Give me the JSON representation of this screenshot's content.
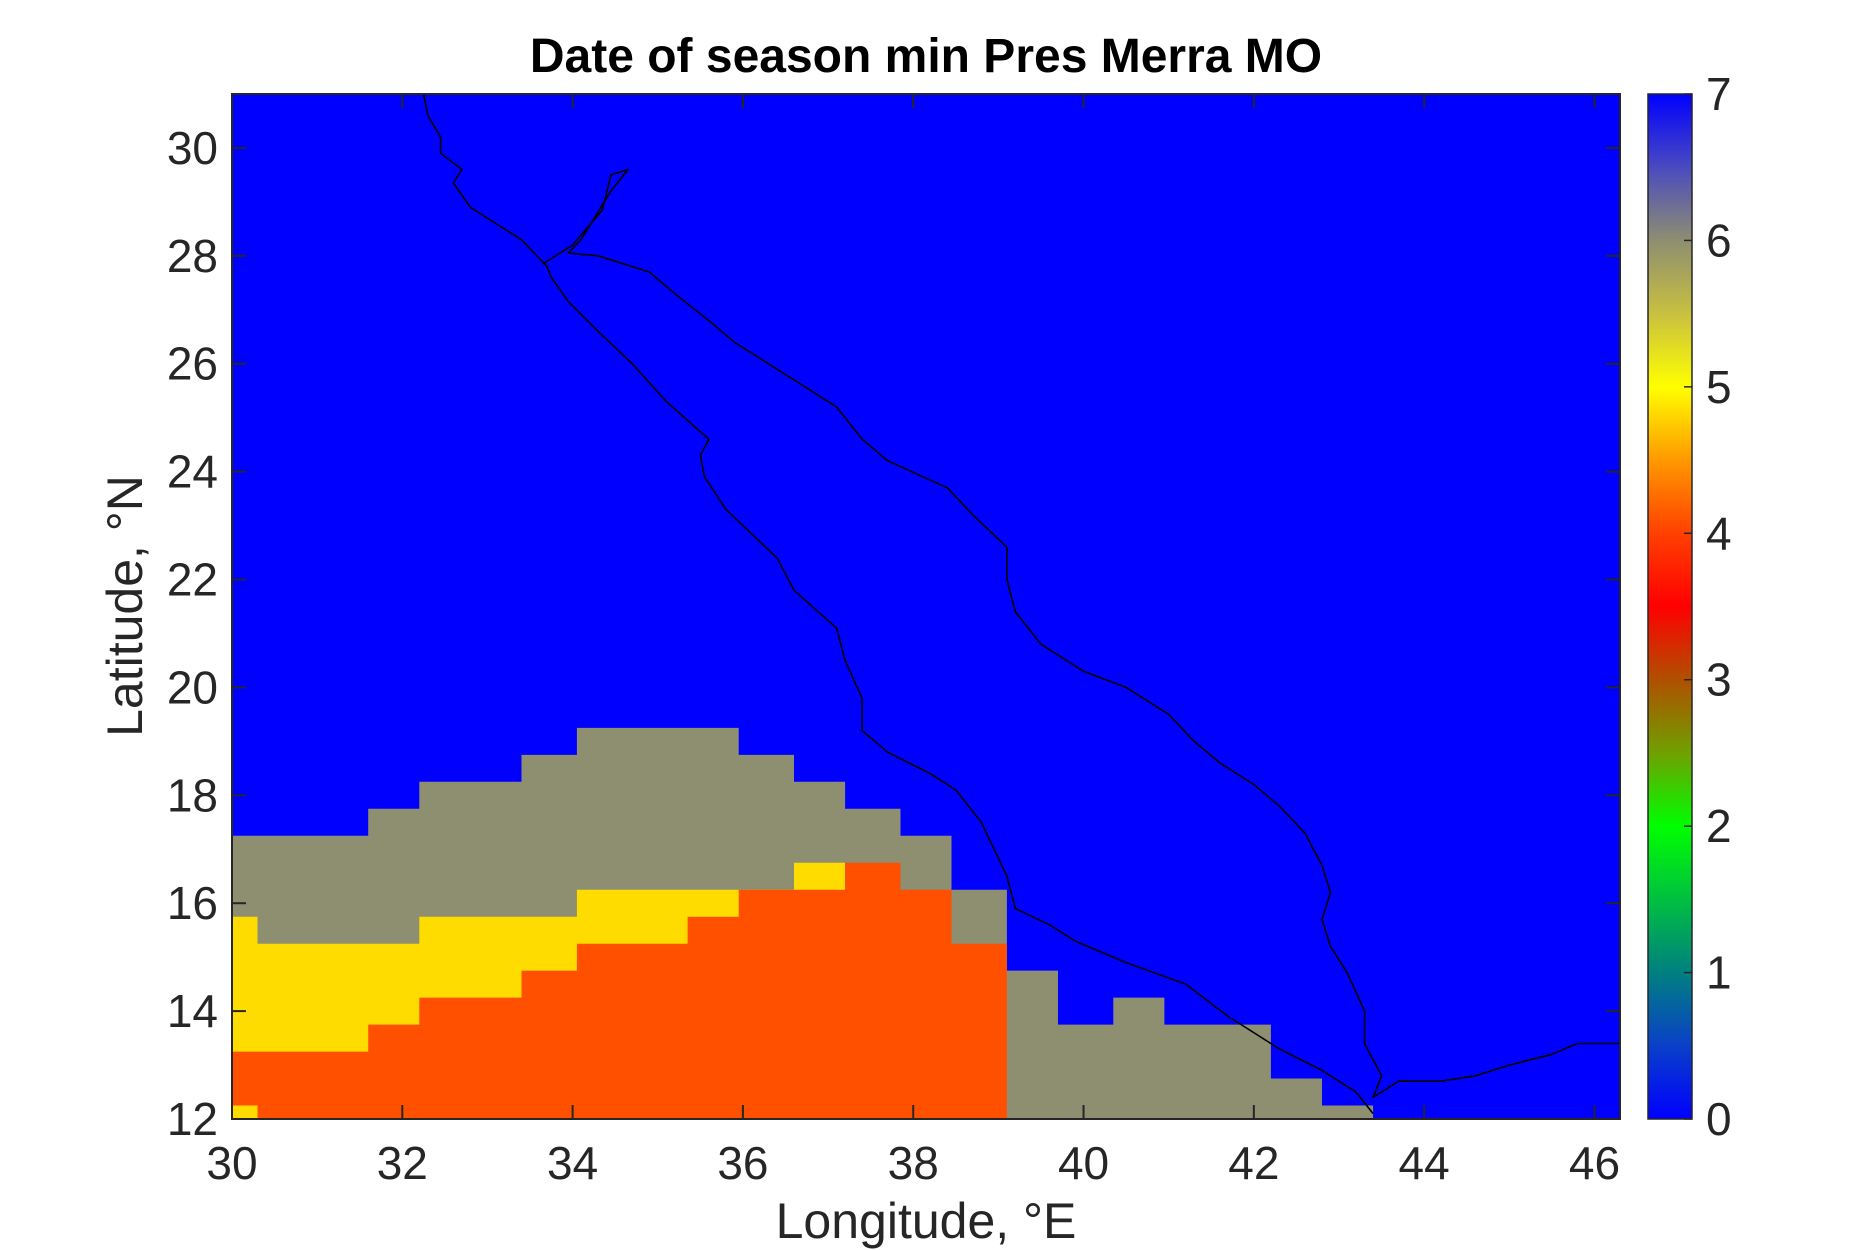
{
  "chart_data": {
    "type": "heatmap",
    "title": "Date of season min Pres Merra MO",
    "xlabel": "Longitude, °E",
    "ylabel": "Latitude, °N",
    "xlim": [
      30,
      46.3
    ],
    "ylim": [
      12,
      31
    ],
    "xticks": [
      30,
      32,
      34,
      36,
      38,
      40,
      42,
      44,
      46
    ],
    "yticks": [
      12,
      14,
      16,
      18,
      20,
      22,
      24,
      26,
      28,
      30
    ],
    "colorbar": {
      "range": [
        0,
        7
      ],
      "ticks": [
        0,
        1,
        2,
        3,
        4,
        5,
        6,
        7
      ],
      "colormap": "blue-teal-green-brown-red-orange-yellow-gray-blue",
      "stops": [
        {
          "value": 0,
          "color": "#0000ff"
        },
        {
          "value": 0.5,
          "color": "#0a40c8"
        },
        {
          "value": 1,
          "color": "#008080"
        },
        {
          "value": 1.5,
          "color": "#00c040"
        },
        {
          "value": 2,
          "color": "#00ff00"
        },
        {
          "value": 2.5,
          "color": "#70a000"
        },
        {
          "value": 3,
          "color": "#b05000"
        },
        {
          "value": 3.5,
          "color": "#ff0000"
        },
        {
          "value": 4,
          "color": "#ff4000"
        },
        {
          "value": 4.5,
          "color": "#ff9900"
        },
        {
          "value": 5,
          "color": "#ffff00"
        },
        {
          "value": 5.5,
          "color": "#c8c040"
        },
        {
          "value": 6,
          "color": "#8e8e70"
        },
        {
          "value": 6.5,
          "color": "#4a4ac0"
        },
        {
          "value": 7,
          "color": "#0000ff"
        }
      ]
    },
    "background_value": 7,
    "cell_colors": {
      "7": "#0000ff",
      "6": "#8e8e70",
      "5": "#ffdc00",
      "4": "#ff5000"
    },
    "regions": [
      {
        "value": 6,
        "polygon": [
          [
            30,
            17.25
          ],
          [
            31.6,
            17.25
          ],
          [
            31.6,
            17.75
          ],
          [
            32.2,
            17.75
          ],
          [
            32.2,
            18.25
          ],
          [
            33.4,
            18.25
          ],
          [
            33.4,
            18.75
          ],
          [
            34.05,
            18.75
          ],
          [
            34.05,
            19.25
          ],
          [
            35.95,
            19.25
          ],
          [
            35.95,
            18.75
          ],
          [
            36.6,
            18.75
          ],
          [
            36.6,
            18.25
          ],
          [
            37.2,
            18.25
          ],
          [
            37.2,
            17.75
          ],
          [
            37.85,
            17.75
          ],
          [
            37.85,
            17.25
          ],
          [
            38.45,
            17.25
          ],
          [
            38.45,
            16.25
          ],
          [
            39.1,
            16.25
          ],
          [
            39.1,
            14.75
          ],
          [
            39.7,
            14.75
          ],
          [
            39.7,
            13.75
          ],
          [
            40.35,
            13.75
          ],
          [
            40.35,
            14.25
          ],
          [
            40.95,
            14.25
          ],
          [
            40.95,
            13.75
          ],
          [
            42.2,
            13.75
          ],
          [
            42.2,
            12.75
          ],
          [
            42.8,
            12.75
          ],
          [
            42.8,
            12.25
          ],
          [
            43.4,
            12.25
          ],
          [
            43.4,
            12
          ],
          [
            30,
            12
          ]
        ]
      },
      {
        "value": 5,
        "polygon": [
          [
            30,
            15.75
          ],
          [
            30.3,
            15.75
          ],
          [
            30.3,
            15.25
          ],
          [
            32.2,
            15.25
          ],
          [
            32.2,
            15.75
          ],
          [
            34.05,
            15.75
          ],
          [
            34.05,
            16.25
          ],
          [
            35.95,
            16.25
          ],
          [
            35.95,
            16.25
          ],
          [
            36.6,
            16.25
          ],
          [
            36.6,
            16.75
          ],
          [
            37.2,
            16.75
          ],
          [
            37.2,
            12
          ],
          [
            30,
            12
          ]
        ]
      },
      {
        "value": 4,
        "polygon": [
          [
            30,
            13.25
          ],
          [
            31.6,
            13.25
          ],
          [
            31.6,
            13.75
          ],
          [
            32.2,
            13.75
          ],
          [
            32.2,
            14.25
          ],
          [
            33.4,
            14.25
          ],
          [
            33.4,
            14.75
          ],
          [
            34.05,
            14.75
          ],
          [
            34.05,
            15.25
          ],
          [
            35.35,
            15.25
          ],
          [
            35.35,
            15.75
          ],
          [
            35.95,
            15.75
          ],
          [
            35.95,
            16.25
          ],
          [
            36.6,
            16.25
          ],
          [
            36.6,
            16.25
          ],
          [
            37.2,
            16.25
          ],
          [
            37.2,
            16.75
          ],
          [
            37.85,
            16.75
          ],
          [
            37.85,
            16.25
          ],
          [
            38.45,
            16.25
          ],
          [
            38.45,
            15.25
          ],
          [
            39.1,
            15.25
          ],
          [
            39.1,
            12.25
          ],
          [
            39.7,
            12.25
          ],
          [
            39.7,
            12
          ],
          [
            30.3,
            12
          ],
          [
            30.3,
            12.25
          ],
          [
            30,
            12.25
          ]
        ]
      },
      {
        "value": 6,
        "polygon": [
          [
            39.1,
            12.25
          ],
          [
            39.7,
            12.25
          ],
          [
            39.7,
            12
          ],
          [
            39.1,
            12
          ]
        ]
      }
    ],
    "coastline": [
      [
        [
          32.25,
          31
        ],
        [
          32.3,
          30.6
        ],
        [
          32.45,
          30.2
        ],
        [
          32.45,
          29.9
        ],
        [
          32.7,
          29.6
        ],
        [
          32.6,
          29.35
        ],
        [
          32.8,
          28.9
        ],
        [
          33.4,
          28.3
        ],
        [
          33.7,
          27.8
        ],
        [
          33.75,
          27.6
        ],
        [
          33.95,
          27.15
        ],
        [
          34.3,
          26.6
        ],
        [
          34.7,
          26.0
        ],
        [
          35.1,
          25.3
        ],
        [
          35.6,
          24.6
        ],
        [
          35.5,
          24.3
        ],
        [
          35.55,
          23.9
        ],
        [
          35.8,
          23.3
        ],
        [
          36.0,
          23.0
        ],
        [
          36.4,
          22.4
        ],
        [
          36.6,
          21.8
        ],
        [
          37.1,
          21.1
        ],
        [
          37.2,
          20.5
        ],
        [
          37.4,
          19.8
        ],
        [
          37.4,
          19.2
        ],
        [
          37.7,
          18.8
        ],
        [
          38.2,
          18.4
        ],
        [
          38.5,
          18.1
        ],
        [
          38.8,
          17.5
        ],
        [
          39.1,
          16.5
        ],
        [
          39.2,
          15.9
        ],
        [
          39.6,
          15.6
        ],
        [
          39.9,
          15.3
        ],
        [
          40.5,
          14.9
        ],
        [
          41.2,
          14.5
        ],
        [
          41.7,
          13.9
        ],
        [
          42.3,
          13.3
        ],
        [
          42.8,
          12.9
        ],
        [
          43.2,
          12.5
        ],
        [
          43.4,
          12.1
        ]
      ],
      [
        [
          33.65,
          27.85
        ],
        [
          34.0,
          28.2
        ],
        [
          34.35,
          28.85
        ],
        [
          34.45,
          29.5
        ],
        [
          34.65,
          29.6
        ],
        [
          34.45,
          29.2
        ],
        [
          34.1,
          28.3
        ],
        [
          33.95,
          28.05
        ],
        [
          34.3,
          28.0
        ],
        [
          34.9,
          27.7
        ],
        [
          35.2,
          27.3
        ],
        [
          35.6,
          26.8
        ],
        [
          35.9,
          26.4
        ],
        [
          36.6,
          25.7
        ],
        [
          37.1,
          25.2
        ],
        [
          37.4,
          24.6
        ],
        [
          37.7,
          24.2
        ],
        [
          38.4,
          23.7
        ],
        [
          38.7,
          23.2
        ],
        [
          39.1,
          22.6
        ],
        [
          39.1,
          22.0
        ],
        [
          39.2,
          21.4
        ],
        [
          39.5,
          20.8
        ],
        [
          40.0,
          20.3
        ],
        [
          40.5,
          20.0
        ],
        [
          41.0,
          19.5
        ],
        [
          41.3,
          19.0
        ],
        [
          41.6,
          18.6
        ],
        [
          42.0,
          18.2
        ],
        [
          42.3,
          17.8
        ],
        [
          42.6,
          17.3
        ],
        [
          42.8,
          16.7
        ],
        [
          42.9,
          16.2
        ],
        [
          42.8,
          15.7
        ],
        [
          42.9,
          15.2
        ],
        [
          43.1,
          14.7
        ],
        [
          43.3,
          14.0
        ],
        [
          43.3,
          13.4
        ],
        [
          43.5,
          12.8
        ],
        [
          43.4,
          12.4
        ],
        [
          43.7,
          12.7
        ],
        [
          44.2,
          12.7
        ],
        [
          44.6,
          12.8
        ],
        [
          45.0,
          13.0
        ],
        [
          45.5,
          13.2
        ],
        [
          45.8,
          13.4
        ],
        [
          46.3,
          13.4
        ]
      ]
    ]
  }
}
